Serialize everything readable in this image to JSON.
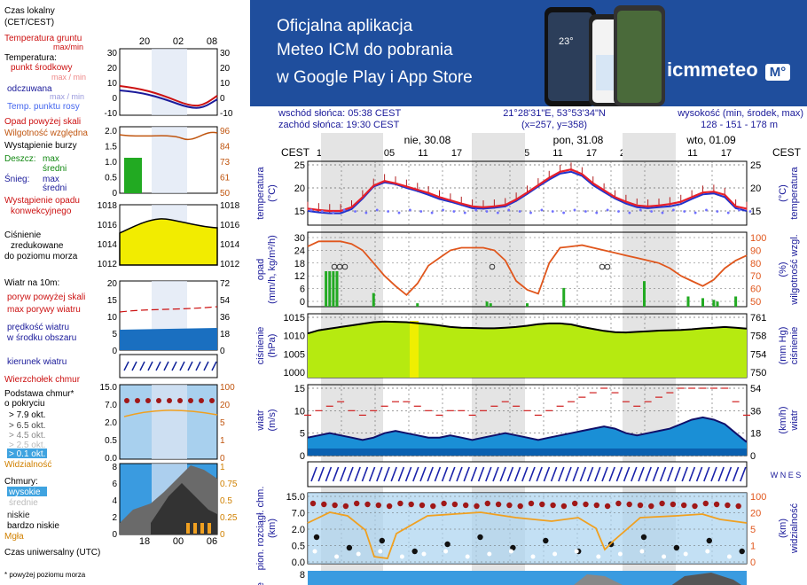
{
  "banner": {
    "line1": "Oficjalna aplikacja",
    "line2": "Meteo ICM do pobrania",
    "line3": "w Google Play i App Store",
    "logo_text": "icmmeteo",
    "logo_badge": "M°",
    "phone_temp": "23°"
  },
  "legend": {
    "time_local": "Czas lokalny",
    "time_local_sub": "(CET/CEST)",
    "ground_temp": "Temperatura gruntu",
    "ground_temp_sub": "max/min",
    "temperature": "Temperatura:",
    "mid_point": "punkt środkowy",
    "mid_sub": "max / min",
    "apparent": "odczuwana",
    "apparent_sub": "max / min",
    "dew_point": "Temp. punktu rosy",
    "precip_above": "Opad powyżej skali",
    "humidity": "Wilgotność względna",
    "storm": "Wystąpienie burzy",
    "rain": "Deszcz:",
    "rain_max": "max",
    "rain_mid": "średni",
    "snow": "Śnieg:",
    "snow_max": "max",
    "snow_mid": "średni",
    "convective": "Wystąpienie opadu",
    "convective_sub": "konwekcyjnego",
    "pressure": "Ciśnienie",
    "pressure_sub1": "zredukowane",
    "pressure_sub2": "do poziomu morza",
    "wind_at": "Wiatr na 10m:",
    "gust_above": "poryw powyżej skali",
    "max_gust": "max porywy wiatru",
    "wind_speed": "prędkość wiatru",
    "wind_speed_sub": "w środku obszaru",
    "wind_dir": "kierunek wiatru",
    "cloud_top": "Wierzchołek chmur",
    "cloud_base": "Podstawa chmur*",
    "cloud_base_sub": "o pokryciu",
    "okt1": "> 7.9 okt.",
    "okt2": "> 6.5 okt.",
    "okt3": "> 4.5 okt.",
    "okt4": "> 2.5 okt.",
    "okt5": "> 0.1 okt.",
    "visibility": "Widzialność",
    "clouds": "Chmury:",
    "high": "wysokie",
    "middle": "średnie",
    "low": "niskie",
    "very_low": "bardzo niskie",
    "fog": "Mgła",
    "utc": "Czas uniwersalny (UTC)",
    "footnote": "* powyżej poziomu morza"
  },
  "legend_axes": {
    "temp_ticks": [
      "30",
      "20",
      "10",
      "0",
      "-10"
    ],
    "precip_ticks": [
      "2.0",
      "1.5",
      "1.0",
      "0.5",
      "0"
    ],
    "humidity_ticks": [
      "96",
      "84",
      "73",
      "61",
      "50"
    ],
    "pressure_ticks": [
      "1018",
      "1016",
      "1014",
      "1012"
    ],
    "wind_ticks_ms": [
      "20",
      "15",
      "10",
      "5",
      "0"
    ],
    "wind_ticks_kmh": [
      "72",
      "54",
      "36",
      "18",
      "0"
    ],
    "cloud_ticks_km": [
      "15.0",
      "7.0",
      "2.0",
      "0.5",
      "0.0"
    ],
    "vis_ticks": [
      "100",
      "20",
      "5",
      "1",
      "0"
    ],
    "cloud_cover_ticks": [
      "8",
      "6",
      "4",
      "2",
      "0"
    ],
    "cloud_frac_ticks": [
      "1",
      "0.75",
      "0.5",
      "0.25",
      "0"
    ],
    "top_time": [
      "20",
      "02",
      "08"
    ],
    "bottom_time": [
      "18",
      "00",
      "06"
    ]
  },
  "header": {
    "sunrise": "wschód słońca: 05:38 CEST",
    "sunset": "zachód słońca: 19:30 CEST",
    "coords": "21°28'31\"E, 53°53'34\"N",
    "grid": "(x=257,  y=358)",
    "height_label": "wysokość (min, środek, max)",
    "height_value": "128 - 151 - 178 m",
    "tz_left": "CEST",
    "tz_right": "CEST",
    "days": [
      "nie, 30.08",
      "pon, 31.08",
      "wto, 01.09"
    ],
    "hours": [
      "17",
      "23",
      "05",
      "11",
      "17",
      "23",
      "05",
      "11",
      "17",
      "23",
      "05",
      "11",
      "17"
    ]
  },
  "panels": {
    "temp": {
      "left_title": "temperatura",
      "left_unit": "(°C)",
      "right_title": "temperatura",
      "right_unit": "(°C)",
      "ticks": [
        "25",
        "20",
        "15"
      ]
    },
    "precip": {
      "left_title": "opad",
      "left_unit": "(mm/h, kg/m²/h)",
      "right_title": "wilgotność wzgl.",
      "right_unit": "(%)",
      "ticks_left": [
        "30",
        "24",
        "18",
        "12",
        "6",
        "0"
      ],
      "ticks_right": [
        "100",
        "90",
        "80",
        "70",
        "60",
        "50"
      ]
    },
    "pressure": {
      "left_title": "ciśnienie",
      "left_unit": "(hPa)",
      "right_title": "ciśnienie",
      "right_unit": "(mm Hg)",
      "ticks_left": [
        "1015",
        "1010",
        "1005",
        "1000"
      ],
      "ticks_right": [
        "761",
        "758",
        "754",
        "750"
      ]
    },
    "wind": {
      "left_title": "wiatr",
      "left_unit": "(m/s)",
      "right_title": "wiatr",
      "right_unit": "(km/h)",
      "ticks_left": [
        "15",
        "10",
        "5",
        "0"
      ],
      "ticks_right": [
        "54",
        "36",
        "18",
        "0"
      ]
    },
    "wind_dir": {
      "compass": "W N E S"
    },
    "clouds": {
      "left_title": "pion. rozciągł. chm.",
      "left_unit": "(km)",
      "right_title": "widzialność",
      "right_unit": "(km)",
      "ticks_left": [
        "15.0",
        "7.0",
        "2.0",
        "0.5",
        "0.0"
      ],
      "ticks_right": [
        "100",
        "20",
        "5",
        "1",
        "0"
      ]
    },
    "cover": {
      "left_title": "e",
      "ticks_left": [
        "8"
      ]
    }
  },
  "colors": {
    "banner_bg": "#1f4e9d",
    "temp_mid": "#e8202a",
    "apparent": "#2233cc",
    "dew": "#7070ff",
    "humidity": "#e0561c",
    "rain": "#22aa22",
    "pressure_fill": "#c8f000",
    "wind_fill": "#1a8fd6",
    "vis_line": "#f0a020",
    "grid_bg": "#dcdcdc"
  },
  "chart_data": {
    "type": "line",
    "hours_from_start": [
      0,
      3,
      6,
      9,
      12,
      15,
      18,
      21,
      24,
      27,
      30,
      33,
      36,
      39,
      42,
      45,
      48,
      51,
      54,
      57,
      60,
      63,
      66,
      69,
      72,
      75,
      78,
      81,
      84,
      87,
      90,
      93,
      96,
      99,
      102,
      105,
      108,
      111,
      114,
      117,
      120
    ],
    "temperature": [
      15.5,
      15.2,
      15,
      15,
      15.8,
      18,
      20.5,
      21.5,
      21,
      20.3,
      19.6,
      18.9,
      18,
      17.3,
      16.6,
      16,
      15.8,
      16,
      16.3,
      17.5,
      19,
      20.6,
      22.2,
      23.5,
      24,
      23,
      21,
      19.5,
      18,
      17,
      16.2,
      16,
      16.2,
      16.5,
      17,
      18,
      19,
      19.2,
      18.5,
      16,
      15.5
    ],
    "apparent": [
      15,
      14.7,
      14.5,
      14.5,
      15.4,
      17.7,
      20.3,
      21.2,
      20.8,
      20,
      19.3,
      18.5,
      17.6,
      17,
      16.3,
      15.6,
      15.5,
      15.7,
      16,
      17.2,
      18.7,
      20.3,
      21.8,
      23.1,
      23.5,
      22.6,
      20.6,
      19.1,
      17.7,
      16.6,
      15.8,
      15.6,
      15.8,
      16,
      16.5,
      17.6,
      18.6,
      18.8,
      18,
      15.6,
      15
    ],
    "humidity": [
      93,
      97,
      97,
      97,
      95,
      90,
      80,
      70,
      62,
      55,
      64,
      78,
      84,
      90,
      92,
      92,
      92,
      90,
      82,
      66,
      59,
      56,
      80,
      92,
      93,
      94,
      92,
      90,
      88,
      86,
      84,
      82,
      80,
      76,
      70,
      66,
      62,
      67,
      76,
      82,
      86
    ],
    "pressure": [
      1011,
      1012,
      1012.5,
      1013,
      1013.5,
      1014,
      1014.5,
      1014.7,
      1014.6,
      1014.5,
      1014.2,
      1013.9,
      1013.5,
      1013,
      1012.8,
      1012.7,
      1012.6,
      1012.6,
      1012.8,
      1013,
      1013.4,
      1013.9,
      1014.1,
      1014.1,
      1013.8,
      1013,
      1012.4,
      1011.8,
      1011.4,
      1011.3,
      1011.5,
      1011.7,
      1011.9,
      1012,
      1012.1,
      1012.3,
      1012.6,
      1012.8,
      1013,
      1012.8,
      1012.5
    ],
    "wind_speed": [
      4,
      4.5,
      5,
      4.5,
      4,
      3.5,
      4,
      5,
      5.5,
      5,
      4.5,
      4,
      4,
      4.5,
      4,
      3.5,
      4,
      4.5,
      5,
      4.5,
      4,
      3.5,
      4,
      4.5,
      5,
      5.5,
      6,
      6.5,
      6,
      5,
      4.5,
      5,
      5.5,
      6,
      7,
      8,
      8.5,
      8,
      7,
      5,
      3
    ],
    "wind_gust": [
      9,
      10,
      11,
      12,
      10,
      9,
      10,
      11,
      12,
      12,
      11,
      10,
      9,
      10,
      10,
      9,
      10,
      11,
      12,
      11,
      10,
      9,
      10,
      11,
      12,
      13,
      14,
      15,
      14,
      12,
      11,
      12,
      13,
      14,
      16,
      18,
      19,
      18,
      16,
      12,
      9
    ],
    "precip_hours": [
      5,
      6,
      7,
      8,
      18,
      30,
      49,
      50,
      60,
      70,
      92,
      104,
      108,
      111,
      112,
      117
    ],
    "precip_values": [
      2.2,
      3,
      2.2,
      2.5,
      0.8,
      0.2,
      0.3,
      0.2,
      0.2,
      1.1,
      1.5,
      0.6,
      0.5,
      0.4,
      0.3,
      0.6
    ],
    "xlabel": "",
    "ylabel": ""
  }
}
